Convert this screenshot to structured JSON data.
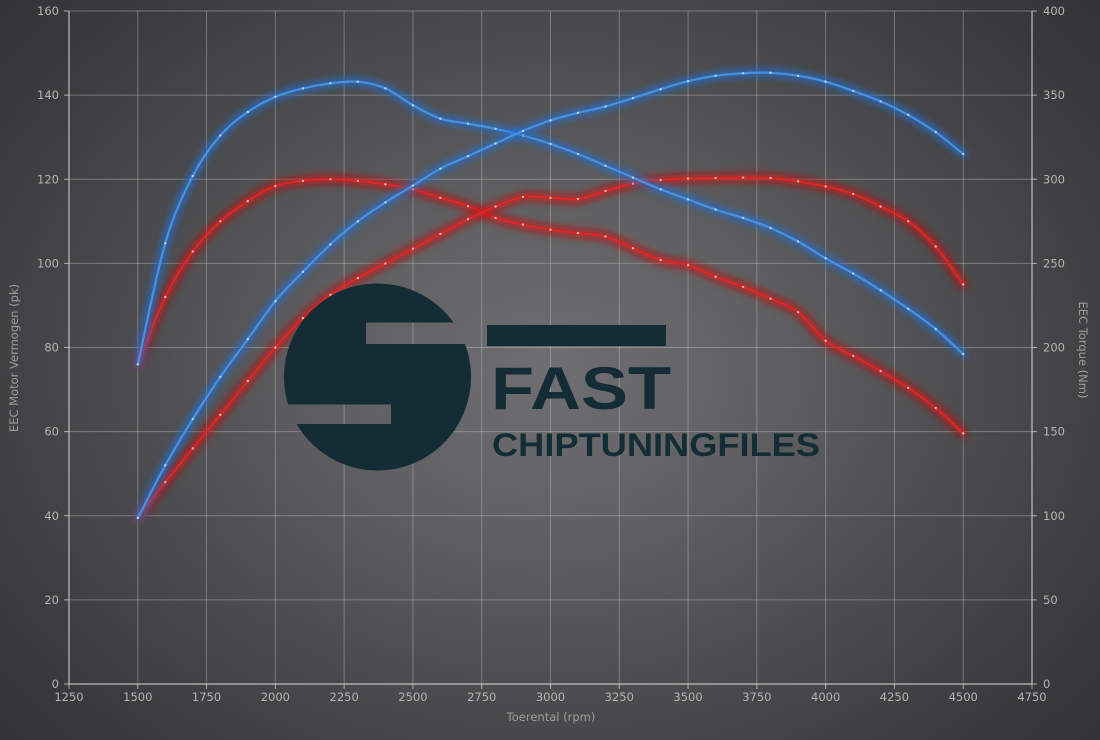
{
  "logo": {
    "line1": "FAST",
    "line2": "CHIPTUNINGFILES",
    "color": "#132c35"
  },
  "colors": {
    "background_center": "#6f6e70",
    "background_edge": "#313033",
    "grid": "#c3c3c3",
    "spine": "#d8d8d8",
    "tick_label": "#b4b4b4",
    "axis_title": "#9d9d9d",
    "blue_main": "#4a94e4",
    "blue_glow": "#1e6ed2",
    "blue_marker": "#c4dcf7",
    "red_main": "#e02525",
    "red_glow": "#c90d0d",
    "red_marker": "#ffc2c2"
  },
  "chart_data": {
    "type": "line",
    "title": "",
    "xlabel": "Toerental (rpm)",
    "ylabel_left": "EEC Motor Vermogen (pk)",
    "ylabel_right": "EEC Torque (Nm)",
    "x_range": [
      1250,
      4750
    ],
    "x_ticks": [
      1250,
      1500,
      1750,
      2000,
      2250,
      2500,
      2750,
      3000,
      3250,
      3500,
      3750,
      4000,
      4250,
      4500,
      4750
    ],
    "left_range": [
      0,
      160
    ],
    "left_ticks": [
      0,
      20,
      40,
      60,
      80,
      100,
      120,
      140,
      160
    ],
    "right_range": [
      0,
      400
    ],
    "right_ticks": [
      0,
      50,
      100,
      150,
      200,
      250,
      300,
      350,
      400
    ],
    "grid": true,
    "legend": "none",
    "series": [
      {
        "id": "torque-red-original",
        "axis": "right",
        "unit": "Nm",
        "color_role": "red",
        "points": [
          [
            1500,
            190
          ],
          [
            1600,
            230
          ],
          [
            1700,
            257
          ],
          [
            1800,
            275
          ],
          [
            1900,
            287
          ],
          [
            2000,
            296
          ],
          [
            2100,
            299
          ],
          [
            2200,
            300
          ],
          [
            2300,
            299
          ],
          [
            2400,
            297
          ],
          [
            2500,
            294
          ],
          [
            2600,
            289
          ],
          [
            2700,
            284
          ],
          [
            2800,
            277
          ],
          [
            2900,
            273
          ],
          [
            3000,
            270
          ],
          [
            3100,
            268
          ],
          [
            3200,
            266
          ],
          [
            3300,
            259
          ],
          [
            3400,
            252
          ],
          [
            3500,
            249
          ],
          [
            3600,
            242
          ],
          [
            3700,
            236
          ],
          [
            3800,
            229
          ],
          [
            3900,
            221
          ],
          [
            4000,
            204
          ],
          [
            4100,
            195
          ],
          [
            4200,
            186
          ],
          [
            4300,
            176
          ],
          [
            4400,
            164
          ],
          [
            4500,
            149
          ]
        ]
      },
      {
        "id": "power-red-original",
        "axis": "left",
        "unit": "pk",
        "color_role": "red",
        "points": [
          [
            1500,
            39.5
          ],
          [
            1600,
            48
          ],
          [
            1700,
            56
          ],
          [
            1800,
            64
          ],
          [
            1900,
            72
          ],
          [
            2000,
            80
          ],
          [
            2100,
            87
          ],
          [
            2200,
            92.5
          ],
          [
            2300,
            96.5
          ],
          [
            2400,
            100
          ],
          [
            2500,
            103.5
          ],
          [
            2600,
            107
          ],
          [
            2700,
            110.5
          ],
          [
            2800,
            113.5
          ],
          [
            2900,
            115.8
          ],
          [
            3000,
            115.6
          ],
          [
            3100,
            115.3
          ],
          [
            3200,
            117.2
          ],
          [
            3300,
            119
          ],
          [
            3400,
            119.8
          ],
          [
            3500,
            120.2
          ],
          [
            3600,
            120.3
          ],
          [
            3700,
            120.4
          ],
          [
            3800,
            120.3
          ],
          [
            3900,
            119.5
          ],
          [
            4000,
            118.3
          ],
          [
            4100,
            116.5
          ],
          [
            4200,
            113.5
          ],
          [
            4300,
            110
          ],
          [
            4400,
            104
          ],
          [
            4500,
            95
          ]
        ]
      },
      {
        "id": "torque-blue-tuned",
        "axis": "right",
        "unit": "Nm",
        "color_role": "blue",
        "points": [
          [
            1500,
            190
          ],
          [
            1600,
            262
          ],
          [
            1700,
            302
          ],
          [
            1800,
            326
          ],
          [
            1900,
            340
          ],
          [
            2000,
            349
          ],
          [
            2100,
            354
          ],
          [
            2200,
            357
          ],
          [
            2300,
            358
          ],
          [
            2400,
            354
          ],
          [
            2500,
            344
          ],
          [
            2600,
            336
          ],
          [
            2700,
            333
          ],
          [
            2800,
            330
          ],
          [
            2900,
            326
          ],
          [
            3000,
            321
          ],
          [
            3100,
            315
          ],
          [
            3200,
            308
          ],
          [
            3300,
            301
          ],
          [
            3400,
            294
          ],
          [
            3500,
            288
          ],
          [
            3600,
            282
          ],
          [
            3700,
            277
          ],
          [
            3800,
            271
          ],
          [
            3900,
            263
          ],
          [
            4000,
            253
          ],
          [
            4100,
            244
          ],
          [
            4200,
            234
          ],
          [
            4300,
            223
          ],
          [
            4400,
            211
          ],
          [
            4500,
            196
          ]
        ]
      },
      {
        "id": "power-blue-tuned",
        "axis": "left",
        "unit": "pk",
        "color_role": "blue",
        "points": [
          [
            1500,
            39.5
          ],
          [
            1600,
            52
          ],
          [
            1700,
            63
          ],
          [
            1800,
            73
          ],
          [
            1900,
            82
          ],
          [
            2000,
            91
          ],
          [
            2100,
            98
          ],
          [
            2200,
            104.5
          ],
          [
            2300,
            110
          ],
          [
            2400,
            114.5
          ],
          [
            2500,
            118.5
          ],
          [
            2600,
            122.5
          ],
          [
            2700,
            125.5
          ],
          [
            2800,
            128.5
          ],
          [
            2900,
            131.5
          ],
          [
            3000,
            134
          ],
          [
            3100,
            135.8
          ],
          [
            3200,
            137.3
          ],
          [
            3300,
            139.3
          ],
          [
            3400,
            141.4
          ],
          [
            3500,
            143.3
          ],
          [
            3600,
            144.6
          ],
          [
            3700,
            145.2
          ],
          [
            3800,
            145.3
          ],
          [
            3900,
            144.6
          ],
          [
            4000,
            143.2
          ],
          [
            4100,
            141
          ],
          [
            4200,
            138.5
          ],
          [
            4300,
            135.3
          ],
          [
            4400,
            131.2
          ],
          [
            4500,
            126
          ]
        ]
      }
    ]
  }
}
